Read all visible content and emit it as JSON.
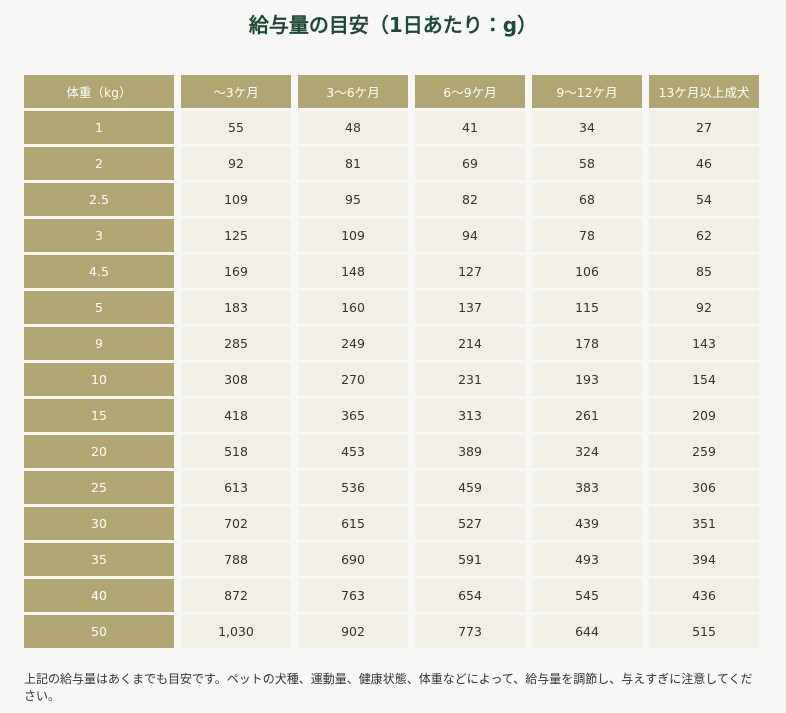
{
  "header": {
    "title": "給与量の目安（1日あたり：g）"
  },
  "table": {
    "columns": [
      "体重（kg）",
      "〜3ケ月",
      "3〜6ケ月",
      "6〜9ケ月",
      "9〜12ケ月",
      "13ケ月以上成犬"
    ],
    "rows": [
      [
        "1",
        "55",
        "48",
        "41",
        "34",
        "27"
      ],
      [
        "2",
        "92",
        "81",
        "69",
        "58",
        "46"
      ],
      [
        "2.5",
        "109",
        "95",
        "82",
        "68",
        "54"
      ],
      [
        "3",
        "125",
        "109",
        "94",
        "78",
        "62"
      ],
      [
        "4.5",
        "169",
        "148",
        "127",
        "106",
        "85"
      ],
      [
        "5",
        "183",
        "160",
        "137",
        "115",
        "92"
      ],
      [
        "9",
        "285",
        "249",
        "214",
        "178",
        "143"
      ],
      [
        "10",
        "308",
        "270",
        "231",
        "193",
        "154"
      ],
      [
        "15",
        "418",
        "365",
        "313",
        "261",
        "209"
      ],
      [
        "20",
        "518",
        "453",
        "389",
        "324",
        "259"
      ],
      [
        "25",
        "613",
        "536",
        "459",
        "383",
        "306"
      ],
      [
        "30",
        "702",
        "615",
        "527",
        "439",
        "351"
      ],
      [
        "35",
        "788",
        "690",
        "591",
        "493",
        "394"
      ],
      [
        "40",
        "872",
        "763",
        "654",
        "545",
        "436"
      ],
      [
        "50",
        "1,030",
        "902",
        "773",
        "644",
        "515"
      ]
    ]
  },
  "note": "上記の給与量はあくまでも目安です。ペットの犬種、運動量、健康状態、体重などによって、給与量を調節し、与えすぎに注意してください。"
}
